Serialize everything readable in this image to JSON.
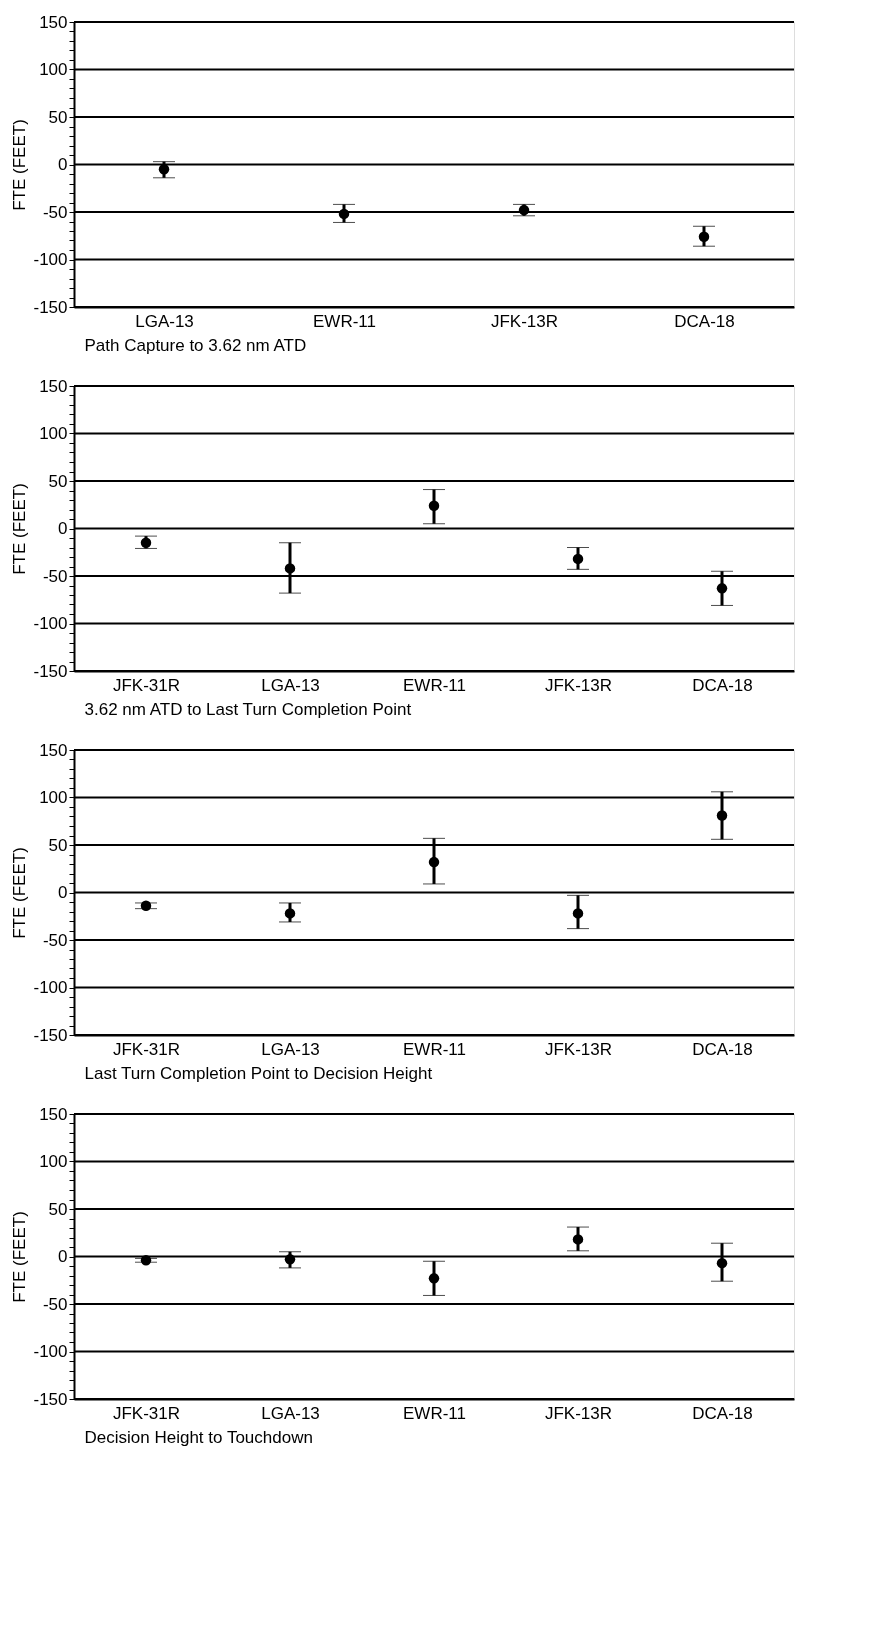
{
  "chart_data": [
    {
      "type": "scatter",
      "categories": [
        "LGA-13",
        "EWR-11",
        "JFK-13R",
        "DCA-18"
      ],
      "values": [
        -5,
        -52,
        -48,
        -76
      ],
      "errors": [
        [
          -14,
          3
        ],
        [
          -61,
          -42
        ],
        [
          -54,
          -42
        ],
        [
          -86,
          -65
        ]
      ],
      "color": "#000000",
      "marker": "circle",
      "xlabel": "Path Capture to 3.62 nm ATD",
      "ylabel": "FTE (FEET)",
      "ylim": [
        -150,
        150
      ],
      "yticks": [
        -150,
        {
          "value": -140,
          "label": null
        },
        {
          "value": -130,
          "label": null
        },
        {
          "value": -120,
          "label": null
        },
        {
          "value": -110,
          "label": null
        },
        -100,
        {
          "value": -90,
          "label": null
        },
        {
          "value": -80,
          "label": null
        },
        {
          "value": -70,
          "label": null
        },
        {
          "value": -60,
          "label": null
        },
        -50,
        {
          "value": -40,
          "label": null
        },
        {
          "value": -30,
          "label": null
        },
        {
          "value": -20,
          "label": null
        },
        {
          "value": -10,
          "label": null
        },
        0,
        {
          "value": 10,
          "label": null
        },
        {
          "value": 20,
          "label": null
        },
        {
          "value": 30,
          "label": null
        },
        {
          "value": 40,
          "label": null
        },
        50,
        {
          "value": 60,
          "label": null
        },
        {
          "value": 70,
          "label": null
        },
        {
          "value": 80,
          "label": null
        },
        {
          "value": 90,
          "label": null
        },
        100,
        {
          "value": 110,
          "label": null
        },
        {
          "value": 120,
          "label": null
        },
        {
          "value": 130,
          "label": null
        },
        {
          "value": 140,
          "label": null
        },
        150
      ],
      "grid": "y"
    },
    {
      "type": "scatter",
      "categories": [
        "JFK-31R",
        "LGA-13",
        "EWR-11",
        "JFK-13R",
        "DCA-18"
      ],
      "values": [
        -15,
        -42,
        24,
        -32,
        -63
      ],
      "errors": [
        [
          -21,
          -8
        ],
        [
          -68,
          -15
        ],
        [
          5,
          41
        ],
        [
          -43,
          -20
        ],
        [
          -81,
          -45
        ]
      ],
      "color": "#000000",
      "marker": "circle",
      "xlabel": "3.62 nm ATD to Last Turn Completion Point",
      "ylabel": "FTE (FEET)",
      "ylim": [
        -150,
        150
      ],
      "yticks": [
        -150,
        {
          "value": -140,
          "label": null
        },
        {
          "value": -130,
          "label": null
        },
        {
          "value": -120,
          "label": null
        },
        {
          "value": -110,
          "label": null
        },
        -100,
        {
          "value": -90,
          "label": null
        },
        {
          "value": -80,
          "label": null
        },
        {
          "value": -70,
          "label": null
        },
        {
          "value": -60,
          "label": null
        },
        -50,
        {
          "value": -40,
          "label": null
        },
        {
          "value": -30,
          "label": null
        },
        {
          "value": -20,
          "label": null
        },
        {
          "value": -10,
          "label": null
        },
        0,
        {
          "value": 10,
          "label": null
        },
        {
          "value": 20,
          "label": null
        },
        {
          "value": 30,
          "label": null
        },
        {
          "value": 40,
          "label": null
        },
        50,
        {
          "value": 60,
          "label": null
        },
        {
          "value": 70,
          "label": null
        },
        {
          "value": 80,
          "label": null
        },
        {
          "value": 90,
          "label": null
        },
        100,
        {
          "value": 110,
          "label": null
        },
        {
          "value": 120,
          "label": null
        },
        {
          "value": 130,
          "label": null
        },
        {
          "value": 140,
          "label": null
        },
        150
      ],
      "grid": "y"
    },
    {
      "type": "scatter",
      "categories": [
        "JFK-31R",
        "LGA-13",
        "EWR-11",
        "JFK-13R",
        "DCA-18"
      ],
      "values": [
        -14,
        -22,
        32,
        -22,
        81
      ],
      "errors": [
        [
          -17,
          -11
        ],
        [
          -31,
          -11
        ],
        [
          9,
          57
        ],
        [
          -38,
          -3
        ],
        [
          56,
          106
        ]
      ],
      "color": "#000000",
      "marker": "circle",
      "xlabel": "Last Turn Completion Point to Decision Height",
      "ylabel": "FTE (FEET)",
      "ylim": [
        -150,
        150
      ],
      "yticks": [
        -150,
        {
          "value": -140,
          "label": null
        },
        {
          "value": -130,
          "label": null
        },
        {
          "value": -120,
          "label": null
        },
        {
          "value": -110,
          "label": null
        },
        -100,
        {
          "value": -90,
          "label": null
        },
        {
          "value": -80,
          "label": null
        },
        {
          "value": -70,
          "label": null
        },
        {
          "value": -60,
          "label": null
        },
        -50,
        {
          "value": -40,
          "label": null
        },
        {
          "value": -30,
          "label": null
        },
        {
          "value": -20,
          "label": null
        },
        {
          "value": -10,
          "label": null
        },
        0,
        {
          "value": 10,
          "label": null
        },
        {
          "value": 20,
          "label": null
        },
        {
          "value": 30,
          "label": null
        },
        {
          "value": 40,
          "label": null
        },
        50,
        {
          "value": 60,
          "label": null
        },
        {
          "value": 70,
          "label": null
        },
        {
          "value": 80,
          "label": null
        },
        {
          "value": 90,
          "label": null
        },
        100,
        {
          "value": 110,
          "label": null
        },
        {
          "value": 120,
          "label": null
        },
        {
          "value": 130,
          "label": null
        },
        {
          "value": 140,
          "label": null
        },
        150
      ],
      "grid": "y"
    },
    {
      "type": "scatter",
      "categories": [
        "JFK-31R",
        "LGA-13",
        "EWR-11",
        "JFK-13R",
        "DCA-18"
      ],
      "values": [
        -4,
        -3,
        -23,
        18,
        -7
      ],
      "errors": [
        [
          -6,
          -2
        ],
        [
          -12,
          5
        ],
        [
          -41,
          -5
        ],
        [
          6,
          31
        ],
        [
          -26,
          14
        ]
      ],
      "color": "#000000",
      "marker": "circle",
      "xlabel": "Decision Height to Touchdown",
      "ylabel": "FTE (FEET)",
      "ylim": [
        -150,
        150
      ],
      "yticks": [
        -150,
        {
          "value": -140,
          "label": null
        },
        {
          "value": -130,
          "label": null
        },
        {
          "value": -120,
          "label": null
        },
        {
          "value": -110,
          "label": null
        },
        -100,
        {
          "value": -90,
          "label": null
        },
        {
          "value": -80,
          "label": null
        },
        {
          "value": -70,
          "label": null
        },
        {
          "value": -60,
          "label": null
        },
        -50,
        {
          "value": -40,
          "label": null
        },
        {
          "value": -30,
          "label": null
        },
        {
          "value": -20,
          "label": null
        },
        {
          "value": -10,
          "label": null
        },
        0,
        {
          "value": 10,
          "label": null
        },
        {
          "value": 20,
          "label": null
        },
        {
          "value": 30,
          "label": null
        },
        {
          "value": 40,
          "label": null
        },
        50,
        {
          "value": 60,
          "label": null
        },
        {
          "value": 70,
          "label": null
        },
        {
          "value": 80,
          "label": null
        },
        {
          "value": 90,
          "label": null
        },
        100,
        {
          "value": 110,
          "label": null
        },
        {
          "value": 120,
          "label": null
        },
        {
          "value": 130,
          "label": null
        },
        {
          "value": 140,
          "label": null
        },
        150
      ],
      "grid": "y"
    }
  ]
}
